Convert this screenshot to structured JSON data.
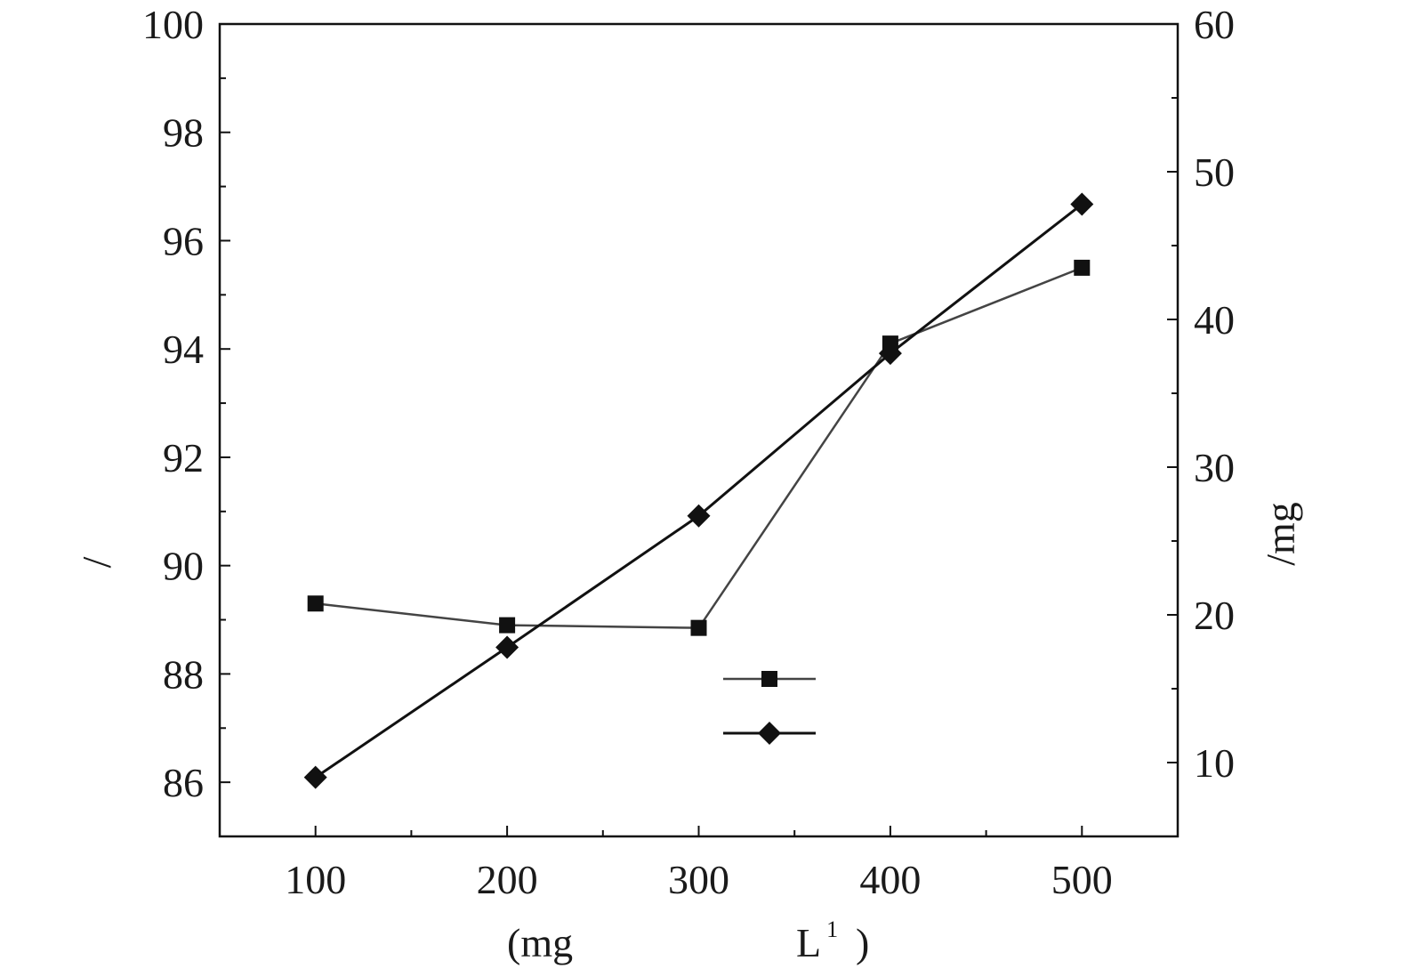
{
  "chart_data": {
    "type": "line",
    "x": [
      100,
      200,
      300,
      400,
      500
    ],
    "xlim": [
      50,
      550
    ],
    "xticks": [
      "100",
      "200",
      "300",
      "400",
      "500"
    ],
    "xlabel": {
      "left": "(mg",
      "unit": "L",
      "exp": "1",
      "right": ")"
    },
    "ylabel_left": "/",
    "ylim_left": [
      85,
      100
    ],
    "yticks_left": [
      "86",
      "88",
      "90",
      "92",
      "94",
      "96",
      "98",
      "100"
    ],
    "ylabel_right": "/mg",
    "ylim_right": [
      5,
      60
    ],
    "yticks_right": [
      "10",
      "20",
      "30",
      "40",
      "50",
      "60"
    ],
    "grid": false,
    "legend": "center",
    "series": [
      {
        "axis": "left",
        "marker": "square",
        "color": "#444444",
        "values": [
          89.3,
          88.9,
          88.85,
          94.1,
          95.5
        ]
      },
      {
        "axis": "right",
        "marker": "diamond",
        "color": "#111111",
        "values": [
          9.0,
          17.8,
          26.7,
          37.7,
          47.8
        ]
      }
    ]
  }
}
